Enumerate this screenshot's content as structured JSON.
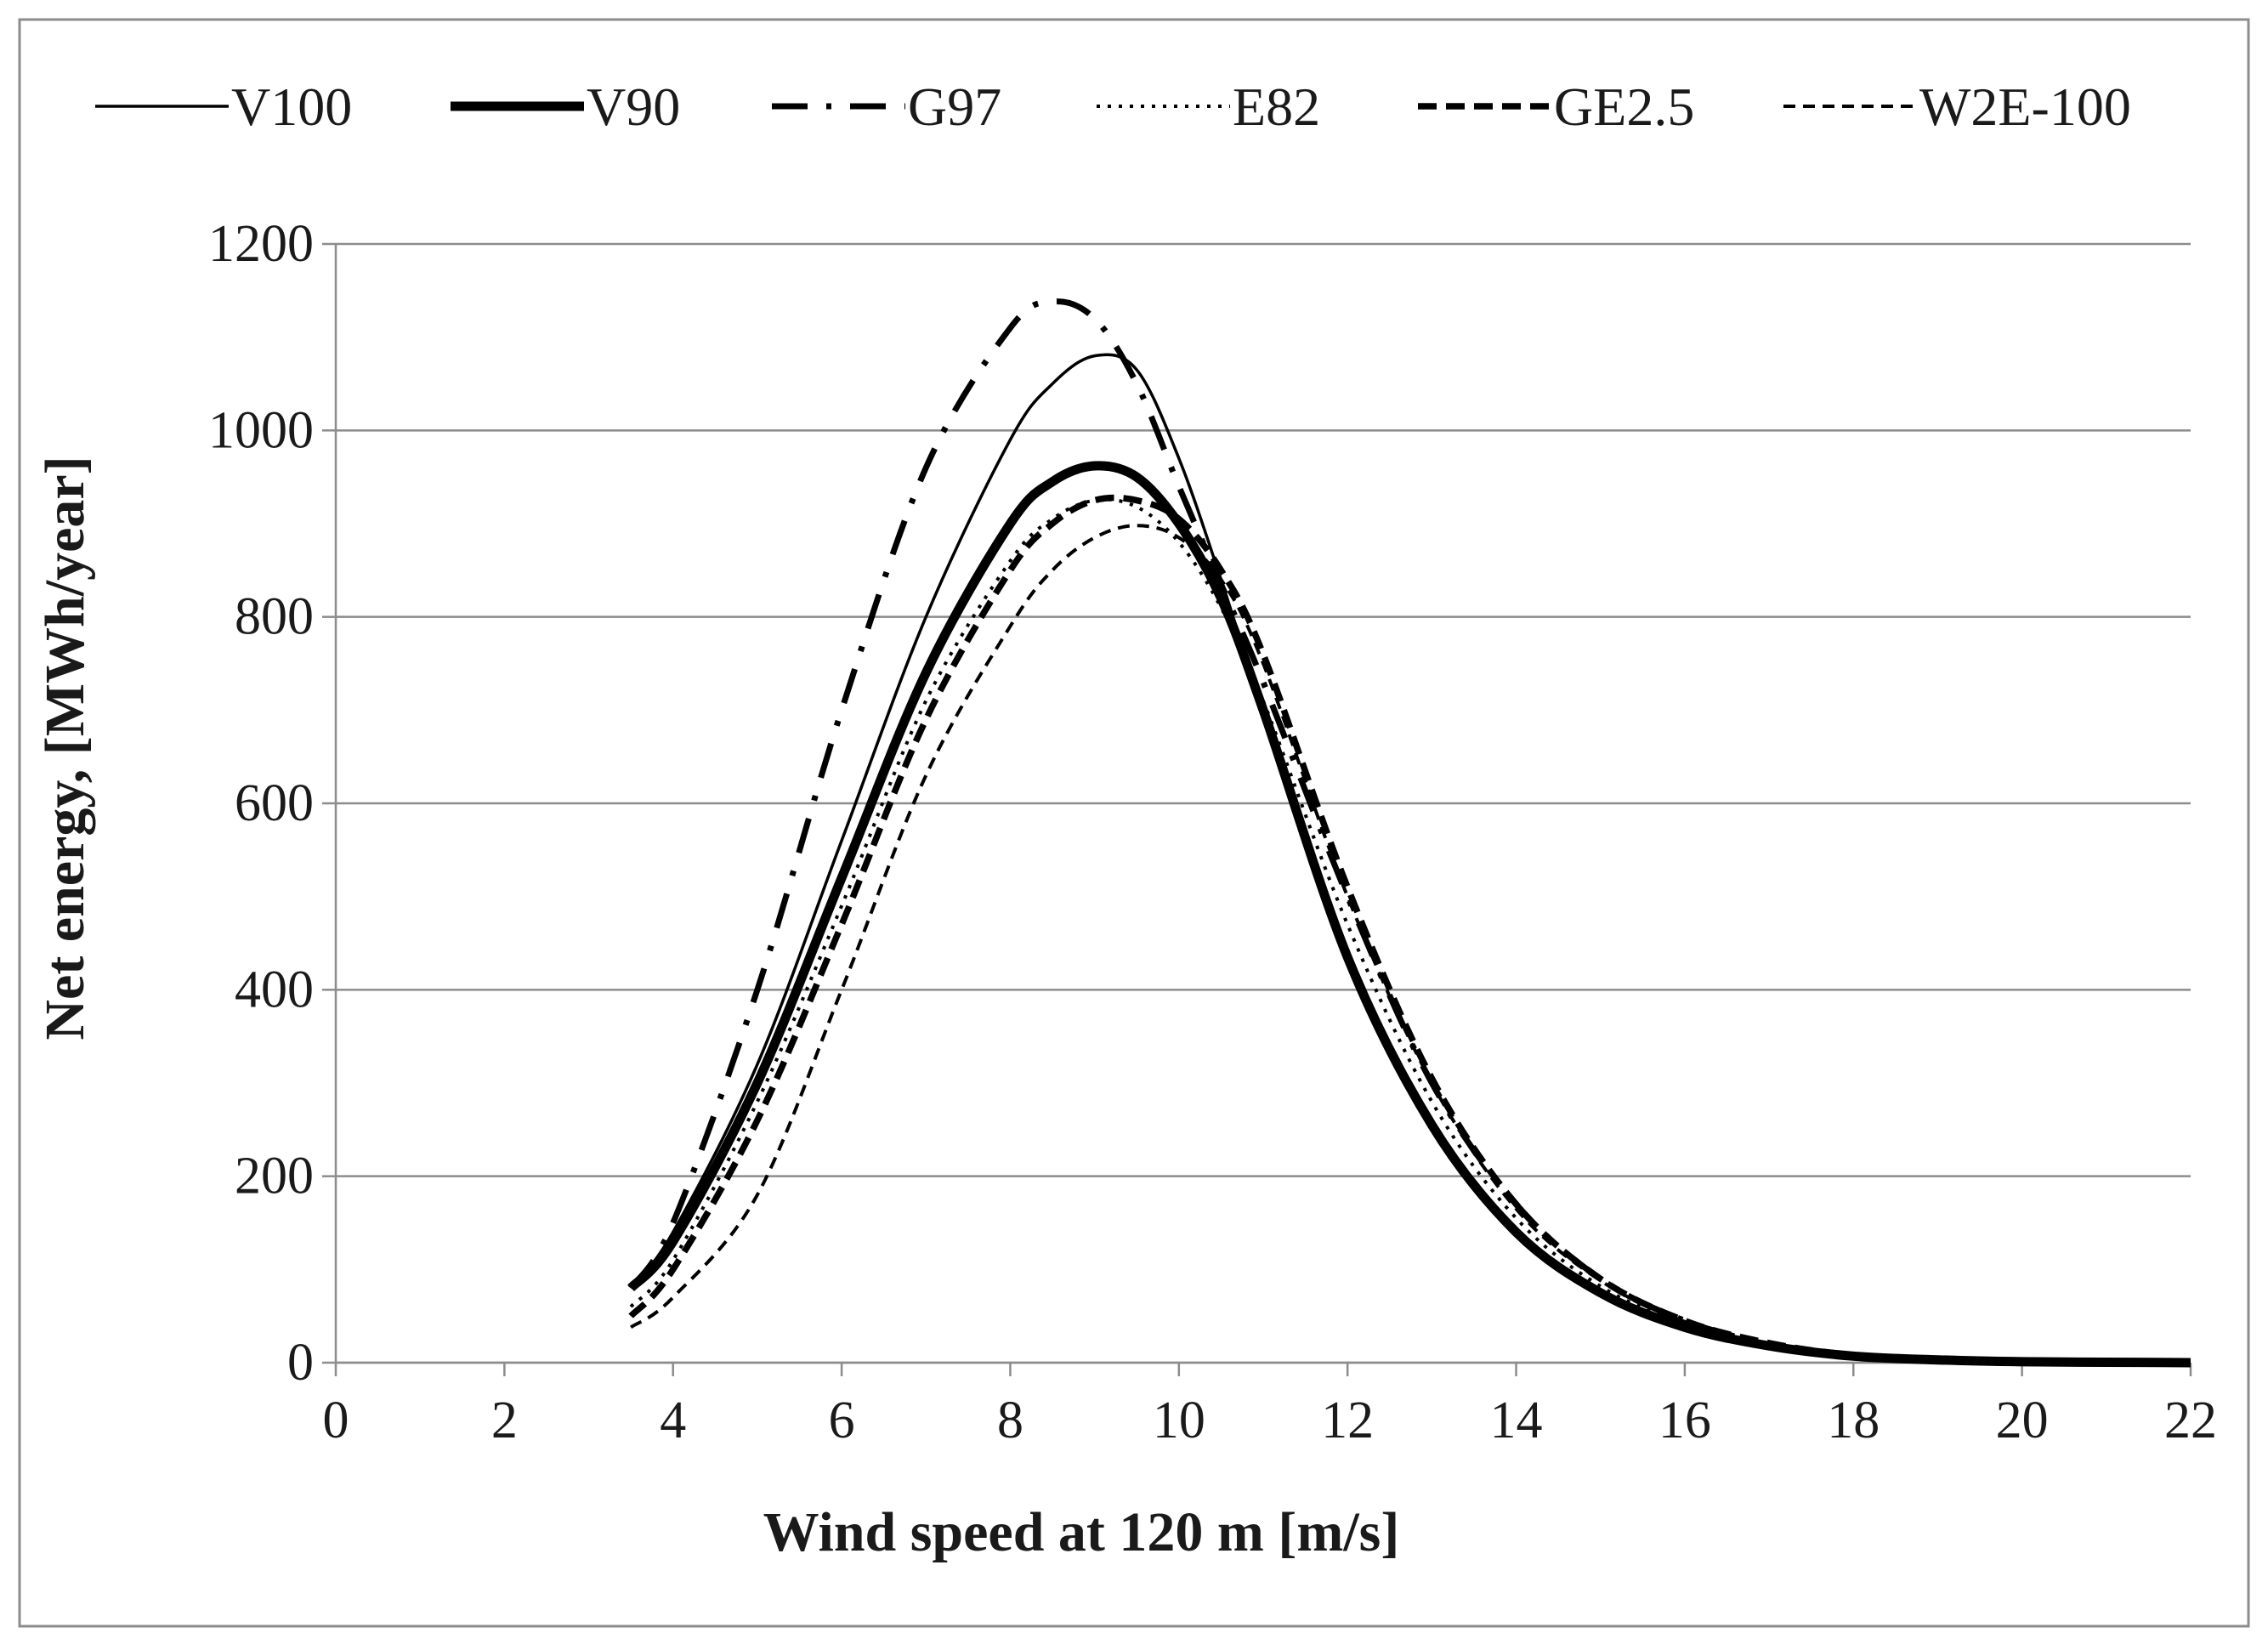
{
  "chart_data": {
    "type": "line",
    "title": "",
    "xlabel": "Wind speed at 120 m [m/s]",
    "ylabel": "Net energy, [MWh/year]",
    "xlim": [
      0,
      22
    ],
    "ylim": [
      0,
      1200
    ],
    "xticks": [
      0,
      2,
      4,
      6,
      8,
      10,
      12,
      14,
      16,
      18,
      20,
      22
    ],
    "yticks": [
      0,
      200,
      400,
      600,
      800,
      1000,
      1200
    ],
    "grid": "horizontal",
    "legend_position": "top",
    "x": [
      3.5,
      4,
      5,
      6,
      7,
      8,
      8.5,
      9,
      9.5,
      10,
      10.5,
      11,
      12,
      13,
      14,
      15,
      16,
      17,
      18,
      19,
      20,
      21,
      22
    ],
    "series": [
      {
        "name": "V100",
        "style": "solid-thin",
        "values": [
          80,
          140,
          320,
          560,
          800,
          990,
          1050,
          1080,
          1065,
          970,
          840,
          700,
          440,
          255,
          140,
          75,
          38,
          18,
          7,
          3,
          1,
          0.5,
          0
        ]
      },
      {
        "name": "V90",
        "style": "solid-thick",
        "values": [
          80,
          130,
          300,
          520,
          740,
          900,
          945,
          962,
          950,
          900,
          820,
          700,
          435,
          255,
          140,
          75,
          38,
          18,
          7,
          3,
          1,
          0.5,
          0
        ]
      },
      {
        "name": "G97",
        "style": "dash-dot",
        "values": [
          80,
          150,
          400,
          700,
          960,
          1110,
          1138,
          1120,
          1050,
          940,
          835,
          730,
          500,
          300,
          170,
          90,
          45,
          20,
          8,
          3,
          1,
          0.5,
          0
        ]
      },
      {
        "name": "E82",
        "style": "dotted",
        "values": [
          60,
          110,
          280,
          490,
          710,
          860,
          905,
          925,
          918,
          880,
          810,
          710,
          470,
          280,
          155,
          82,
          42,
          20,
          8,
          3,
          1,
          0.5,
          0
        ]
      },
      {
        "name": "GE2.5",
        "style": "dashed-thick",
        "values": [
          50,
          100,
          260,
          470,
          690,
          850,
          900,
          925,
          925,
          905,
          850,
          760,
          510,
          305,
          170,
          90,
          45,
          21,
          8,
          3,
          1,
          0.5,
          0
        ]
      },
      {
        "name": "W2E-100",
        "style": "dashed-thin",
        "values": [
          38,
          70,
          180,
          400,
          630,
          790,
          850,
          885,
          898,
          885,
          840,
          750,
          500,
          300,
          165,
          88,
          44,
          20,
          8,
          3,
          1,
          0.5,
          0
        ]
      }
    ]
  }
}
